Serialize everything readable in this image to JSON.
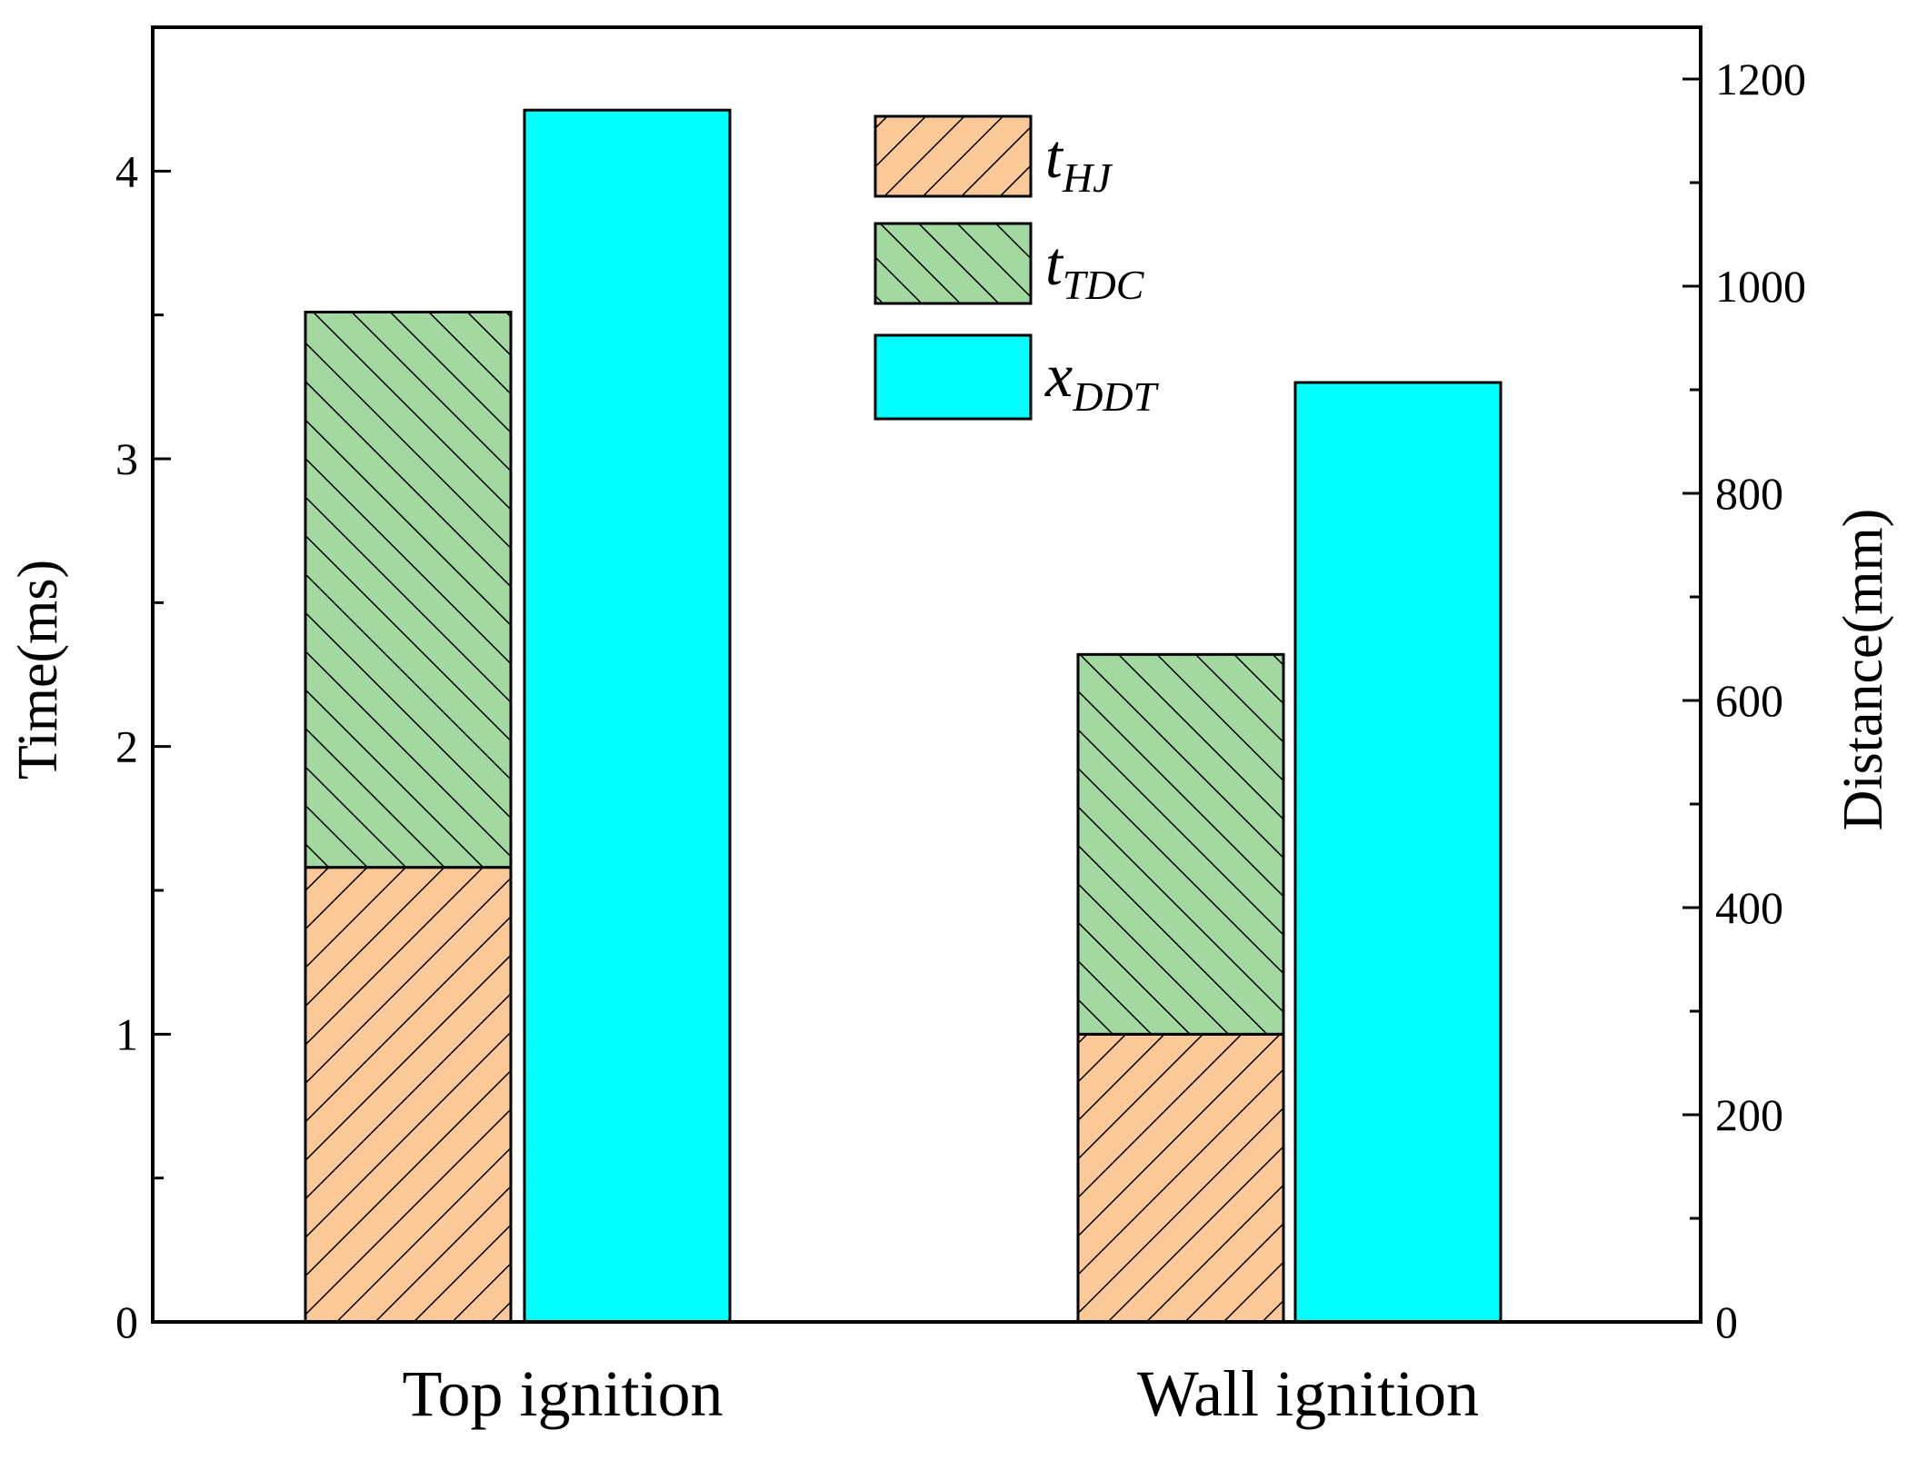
{
  "chart_data": {
    "type": "bar",
    "categories": [
      "Top ignition",
      "Wall ignition"
    ],
    "series": [
      {
        "name": "t_HJ",
        "label_main": "t",
        "label_sub": "HJ",
        "axis": "left",
        "stack": "time",
        "values": [
          1.58,
          1.0
        ],
        "color": "#FBC998",
        "hatch": "forward-diagonal"
      },
      {
        "name": "t_TDC",
        "label_main": "t",
        "label_sub": "TDC",
        "axis": "left",
        "stack": "time",
        "values": [
          1.93,
          1.32
        ],
        "color": "#A3D9A0",
        "hatch": "back-diagonal"
      },
      {
        "name": "x_DDT",
        "label_main": "x",
        "label_sub": "DDT",
        "axis": "right",
        "stack": "distance",
        "values": [
          1170,
          907
        ],
        "color": "#00FFFF",
        "hatch": "none"
      }
    ],
    "ylabel": "Time(ms)",
    "ylim": [
      0,
      4.5
    ],
    "yticks": [
      0,
      1,
      2,
      3,
      4
    ],
    "y2label": "Distance(mm)",
    "y2lim": [
      0,
      1250
    ],
    "y2ticks": [
      0,
      200,
      400,
      600,
      800,
      1000,
      1200
    ],
    "legend_position": "top-center",
    "grid": false
  }
}
